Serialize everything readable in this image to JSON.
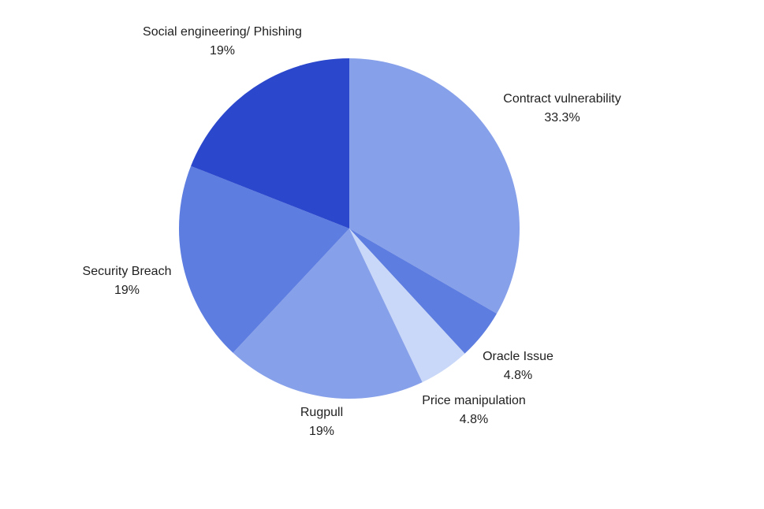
{
  "chart_data": {
    "type": "pie",
    "slices": [
      {
        "label": "Contract vulnerability",
        "value": 33.3,
        "percent_label": "33.3%",
        "color": "#87a0ea"
      },
      {
        "label": "Oracle Issue",
        "value": 4.8,
        "percent_label": "4.8%",
        "color": "#5d7de0"
      },
      {
        "label": "Price manipulation",
        "value": 4.8,
        "percent_label": "4.8%",
        "color": "#c9d8f8"
      },
      {
        "label": "Rugpull",
        "value": 19,
        "percent_label": "19%",
        "color": "#87a0ea"
      },
      {
        "label": "Security Breach",
        "value": 19,
        "percent_label": "19%",
        "color": "#5d7de0"
      },
      {
        "label": "Social engineering/ Phishing",
        "value": 19,
        "percent_label": "19%",
        "color": "#2b47cc"
      }
    ],
    "start_angle": "12 o'clock",
    "direction": "clockwise",
    "legend": "none"
  }
}
